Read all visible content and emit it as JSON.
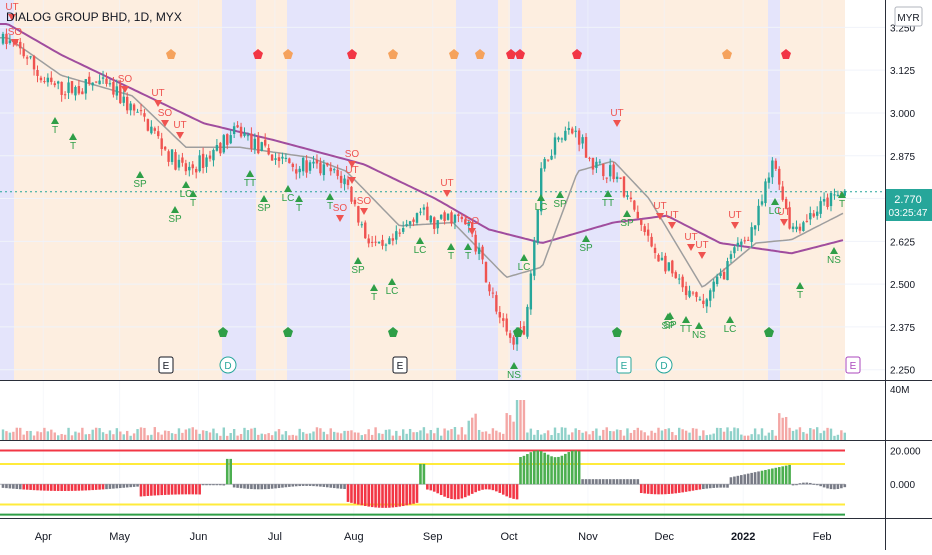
{
  "header": {
    "title": "DIALOG GROUP BHD, 1D, MYX"
  },
  "price_axis": {
    "currency": "MYR",
    "ticks": [
      "3.250",
      "3.125",
      "3.000",
      "2.875",
      "2.750",
      "2.625",
      "2.500",
      "2.375",
      "2.250"
    ],
    "last_price": "2.770",
    "countdown": "03:25:47"
  },
  "volume_axis": {
    "max_label": "40M"
  },
  "oscillator_axis": {
    "ticks": [
      "20.000",
      "0.000"
    ]
  },
  "time_axis": {
    "labels": [
      "Apr",
      "May",
      "Jun",
      "Jul",
      "Aug",
      "Sep",
      "Oct",
      "Nov",
      "Dec",
      "2022",
      "Feb"
    ]
  },
  "event_markers": [
    "E",
    "D",
    "E",
    "E",
    "D",
    "E"
  ],
  "signal_labels": [
    "UT",
    "SO",
    "SO",
    "UT",
    "SO",
    "UT",
    "T",
    "T",
    "SP",
    "LC",
    "T",
    "SP",
    "TT",
    "SP",
    "LC",
    "T",
    "T",
    "SO",
    "SO",
    "UT",
    "SO",
    "SO",
    "SP",
    "T",
    "LC",
    "LC",
    "T",
    "T",
    "UT",
    "LC",
    "NS",
    "LC",
    "SP",
    "SP",
    "UT",
    "TT",
    "SP",
    "SP",
    "UT",
    "UT",
    "UT",
    "UT",
    "UT",
    "SP",
    "TT",
    "NS",
    "LC",
    "UT",
    "LC",
    "T",
    "NS",
    "T"
  ],
  "colors": {
    "up": "#26a69a",
    "down": "#ef5350",
    "ma_fast": "#9e9e9e",
    "ma_slow": "#a04d9e",
    "zone_orange": "#fdeee0",
    "zone_blue": "#e4e4fb",
    "signal_up": "#2e9e47",
    "signal_down": "#ef5350",
    "marker_orange": "#f5a25d",
    "marker_red": "#f23645"
  },
  "chart_data": {
    "type": "candlestick",
    "title": "DIALOG GROUP BHD, 1D, MYX",
    "currency": "MYR",
    "ylim": [
      2.22,
      3.33
    ],
    "x_range": [
      "2021-03-15",
      "2022-02-10"
    ],
    "close_series": [
      [
        "2021-03-18",
        3.21
      ],
      [
        "2021-03-25",
        3.17
      ],
      [
        "2021-04-01",
        3.09
      ],
      [
        "2021-04-08",
        3.07
      ],
      [
        "2021-04-15",
        3.07
      ],
      [
        "2021-04-22",
        3.09
      ],
      [
        "2021-04-29",
        3.06
      ],
      [
        "2021-05-06",
        3.01
      ],
      [
        "2021-05-13",
        2.96
      ],
      [
        "2021-05-20",
        2.88
      ],
      [
        "2021-05-27",
        2.83
      ],
      [
        "2021-06-03",
        2.86
      ],
      [
        "2021-06-10",
        2.91
      ],
      [
        "2021-06-17",
        2.95
      ],
      [
        "2021-06-24",
        2.9
      ],
      [
        "2021-07-01",
        2.87
      ],
      [
        "2021-07-08",
        2.85
      ],
      [
        "2021-07-15",
        2.84
      ],
      [
        "2021-07-22",
        2.83
      ],
      [
        "2021-07-29",
        2.8
      ],
      [
        "2021-08-05",
        2.65
      ],
      [
        "2021-08-12",
        2.59
      ],
      [
        "2021-08-19",
        2.64
      ],
      [
        "2021-08-26",
        2.72
      ],
      [
        "2021-09-02",
        2.67
      ],
      [
        "2021-09-09",
        2.7
      ],
      [
        "2021-09-16",
        2.66
      ],
      [
        "2021-09-23",
        2.5
      ],
      [
        "2021-09-30",
        2.34
      ],
      [
        "2021-10-07",
        2.36
      ],
      [
        "2021-10-14",
        2.84
      ],
      [
        "2021-10-21",
        2.95
      ],
      [
        "2021-10-28",
        2.94
      ],
      [
        "2021-11-04",
        2.84
      ],
      [
        "2021-11-11",
        2.83
      ],
      [
        "2021-11-18",
        2.73
      ],
      [
        "2021-11-25",
        2.62
      ],
      [
        "2021-12-02",
        2.55
      ],
      [
        "2021-12-09",
        2.47
      ],
      [
        "2021-12-16",
        2.44
      ],
      [
        "2021-12-23",
        2.52
      ],
      [
        "2021-12-30",
        2.61
      ],
      [
        "2022-01-06",
        2.68
      ],
      [
        "2022-01-13",
        2.86
      ],
      [
        "2022-01-20",
        2.66
      ],
      [
        "2022-01-27",
        2.7
      ],
      [
        "2022-02-03",
        2.74
      ],
      [
        "2022-02-10",
        2.77
      ]
    ],
    "ma_fast": [
      [
        "2021-03-18",
        3.22
      ],
      [
        "2021-04-08",
        3.11
      ],
      [
        "2021-05-06",
        3.05
      ],
      [
        "2021-05-27",
        2.9
      ],
      [
        "2021-06-17",
        2.9
      ],
      [
        "2021-07-15",
        2.87
      ],
      [
        "2021-07-29",
        2.83
      ],
      [
        "2021-08-19",
        2.67
      ],
      [
        "2021-09-09",
        2.68
      ],
      [
        "2021-09-30",
        2.52
      ],
      [
        "2021-10-14",
        2.55
      ],
      [
        "2021-10-28",
        2.83
      ],
      [
        "2021-11-11",
        2.86
      ],
      [
        "2021-11-25",
        2.75
      ],
      [
        "2021-12-16",
        2.49
      ],
      [
        "2022-01-06",
        2.62
      ],
      [
        "2022-01-20",
        2.63
      ],
      [
        "2022-02-10",
        2.71
      ]
    ],
    "ma_slow": [
      [
        "2021-03-18",
        3.26
      ],
      [
        "2021-04-08",
        3.17
      ],
      [
        "2021-05-06",
        3.07
      ],
      [
        "2021-06-03",
        2.97
      ],
      [
        "2021-07-01",
        2.92
      ],
      [
        "2021-08-05",
        2.85
      ],
      [
        "2021-09-02",
        2.75
      ],
      [
        "2021-09-23",
        2.66
      ],
      [
        "2021-10-14",
        2.62
      ],
      [
        "2021-11-11",
        2.68
      ],
      [
        "2021-12-02",
        2.7
      ],
      [
        "2021-12-23",
        2.62
      ],
      [
        "2022-01-20",
        2.59
      ],
      [
        "2022-02-10",
        2.63
      ]
    ],
    "volume_max": 40,
    "volume_unit": "M",
    "oscillator_ylim": [
      -20,
      25
    ]
  }
}
